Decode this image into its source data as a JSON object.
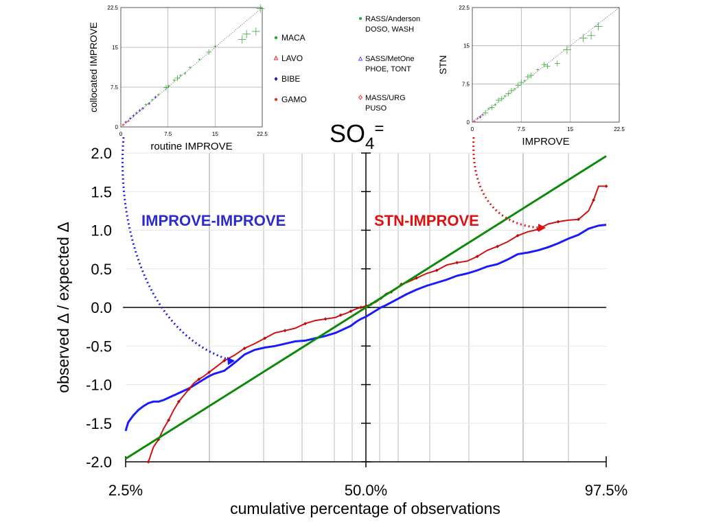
{
  "chart_data": [
    {
      "id": "main",
      "type": "line",
      "title_base": "SO",
      "title_sub": "4",
      "title_sup": "=",
      "xlabel": "cumulative percentage of observations",
      "ylabel": "observed Δ / expected Δ",
      "x_ticks": [
        "2.5%",
        "50.0%",
        "97.5%"
      ],
      "y_ticks": [
        "2.0",
        "1.5",
        "1.0",
        "0.5",
        "0.0",
        "-0.5",
        "-1.0",
        "-1.5",
        "-2.0"
      ],
      "ylim": [
        -2.0,
        2.0
      ],
      "xlim": [
        2.5,
        97.5
      ],
      "annotations": {
        "left": "IMPROVE-IMPROVE",
        "right": "STN-IMPROVE"
      },
      "series": [
        {
          "key": "blue",
          "color": "#1a1aff",
          "x": [
            2.5,
            3,
            4,
            5,
            6,
            7,
            8,
            9,
            10,
            11,
            12,
            13,
            14,
            15,
            16,
            17,
            18,
            19,
            20,
            22,
            24,
            26,
            28,
            30,
            32,
            34,
            36,
            38,
            40,
            42,
            44,
            45,
            46,
            47,
            48,
            49,
            50,
            51,
            52,
            53,
            54,
            56,
            58,
            60,
            62,
            64,
            66,
            68,
            70,
            72,
            74,
            76,
            78,
            80,
            82,
            84,
            86,
            88,
            90,
            92,
            94,
            95,
            96,
            97.5
          ],
          "y": [
            -1.6,
            -1.49,
            -1.4,
            -1.33,
            -1.28,
            -1.24,
            -1.22,
            -1.22,
            -1.2,
            -1.17,
            -1.14,
            -1.11,
            -1.08,
            -1.05,
            -1.01,
            -0.97,
            -0.93,
            -0.89,
            -0.86,
            -0.82,
            -0.72,
            -0.61,
            -0.55,
            -0.52,
            -0.5,
            -0.47,
            -0.44,
            -0.43,
            -0.4,
            -0.37,
            -0.33,
            -0.3,
            -0.27,
            -0.24,
            -0.19,
            -0.15,
            -0.12,
            -0.08,
            -0.04,
            0.0,
            0.03,
            0.1,
            0.17,
            0.23,
            0.28,
            0.32,
            0.36,
            0.41,
            0.44,
            0.48,
            0.53,
            0.56,
            0.62,
            0.69,
            0.71,
            0.74,
            0.78,
            0.83,
            0.89,
            0.94,
            1.02,
            1.04,
            1.06,
            1.07
          ]
        },
        {
          "key": "red",
          "color": "#d01010",
          "x": [
            7,
            8,
            9,
            10,
            11,
            12,
            13,
            14,
            15,
            16,
            17,
            18,
            19,
            20,
            22,
            24,
            26,
            28,
            30,
            32,
            34,
            36,
            38,
            40,
            42,
            44,
            45,
            46,
            47,
            48,
            49,
            50,
            51,
            52,
            53,
            54,
            55,
            56,
            57,
            58,
            60,
            62,
            64,
            66,
            68,
            70,
            72,
            74,
            76,
            78,
            80,
            82,
            84,
            86,
            88,
            90,
            92,
            94,
            95,
            96,
            97.5
          ],
          "y": [
            -2.0,
            -1.81,
            -1.71,
            -1.57,
            -1.46,
            -1.33,
            -1.22,
            -1.14,
            -1.06,
            -0.98,
            -0.93,
            -0.89,
            -0.84,
            -0.79,
            -0.69,
            -0.62,
            -0.53,
            -0.47,
            -0.4,
            -0.33,
            -0.3,
            -0.27,
            -0.21,
            -0.17,
            -0.15,
            -0.13,
            -0.1,
            -0.08,
            -0.05,
            -0.02,
            0.0,
            0.02,
            0.04,
            0.07,
            0.12,
            0.18,
            0.2,
            0.24,
            0.3,
            0.32,
            0.38,
            0.44,
            0.48,
            0.55,
            0.58,
            0.6,
            0.66,
            0.74,
            0.79,
            0.85,
            0.93,
            0.98,
            1.01,
            1.08,
            1.11,
            1.13,
            1.14,
            1.25,
            1.39,
            1.57,
            1.57
          ]
        },
        {
          "key": "green",
          "color": "#0a8a0a",
          "x": [
            2.5,
            97.5
          ],
          "y": [
            -1.96,
            1.96
          ]
        }
      ]
    },
    {
      "id": "inset-left",
      "type": "scatter",
      "xlabel": "routine IMPROVE",
      "ylabel": "collocated IMPROVE",
      "x_ticks": [
        "0",
        "7.5",
        "15",
        "22.5"
      ],
      "y_ticks": [
        "0",
        "7.5",
        "15",
        "22.5"
      ],
      "xlim": [
        0,
        22.5
      ],
      "ylim": [
        0,
        22.5
      ],
      "legend": [
        {
          "label": "MACA",
          "color": "#22aa22",
          "marker": "circle"
        },
        {
          "label": "LAVO",
          "color": "#ee2222",
          "marker": "triangle"
        },
        {
          "label": "BIBE",
          "color": "#1a1aaa",
          "marker": "diamond"
        },
        {
          "label": "GAMO",
          "color": "#d04010",
          "marker": "circle"
        }
      ]
    },
    {
      "id": "inset-right",
      "type": "scatter",
      "xlabel": "IMPROVE",
      "ylabel": "STN",
      "x_ticks": [
        "0",
        "7.5",
        "15",
        "22.5"
      ],
      "y_ticks": [
        "0",
        "7.5",
        "15",
        "22.5"
      ],
      "xlim": [
        0,
        22.5
      ],
      "ylim": [
        0,
        22.5
      ],
      "legend": [
        {
          "line1": "RASS/Anderson",
          "line2": "DOSO, WASH",
          "color": "#22aa22",
          "marker": "circle"
        },
        {
          "line1": "SASS/MetOne",
          "line2": "PHOE, TONT",
          "color": "#5050ee",
          "marker": "triangle"
        },
        {
          "line1": "MASS/URG",
          "line2": "PUSO",
          "color": "#ee3333",
          "marker": "diamond"
        }
      ]
    }
  ]
}
